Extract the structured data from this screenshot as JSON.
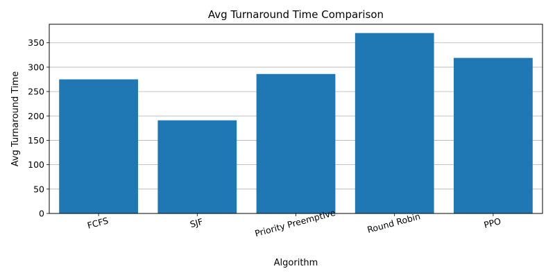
{
  "chart_data": {
    "type": "bar",
    "title": "Avg Turnaround Time Comparison",
    "xlabel": "Algorithm",
    "ylabel": "Avg Turnaround Time",
    "categories": [
      "FCFS",
      "SJF",
      "Priority Preemptive",
      "Round Robin",
      "PPO"
    ],
    "values": [
      275,
      191,
      286,
      370,
      319
    ],
    "ylim": [
      0,
      388
    ],
    "yticks": [
      0,
      50,
      100,
      150,
      200,
      250,
      300,
      350
    ],
    "grid": "horizontal",
    "bar_color": "#1f77b4",
    "xtick_rotation": 15
  }
}
